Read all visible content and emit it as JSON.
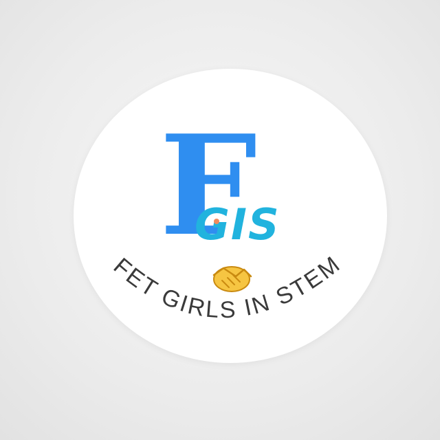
{
  "logo": {
    "big_letter": "F",
    "sub_letters": "GIS",
    "tagline": "FET GIRLS IN STEM",
    "emoji": "🤝",
    "colors": {
      "big_letter": "#2f8ef0",
      "sub_letters": "#21b3de",
      "dot": "#f08a5d",
      "tagline": "#3a3a3a",
      "emoji_fill": "#f6c542",
      "emoji_stroke": "#c98a10"
    }
  }
}
